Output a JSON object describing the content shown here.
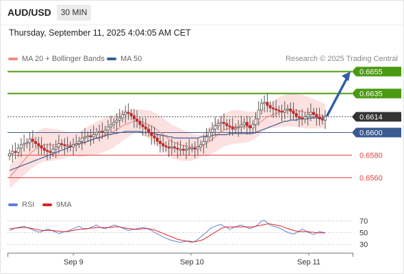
{
  "header": {
    "pair": "AUD/USD",
    "timeframe": "30 MIN",
    "datetime": "Thursday, September 11, 2025 4:04:05 AM CET"
  },
  "legend": {
    "ma20": "MA 20 + Bollinger Bands",
    "ma50": "MA 50",
    "copyright": "Research © 2025 Trading Central",
    "ma20_color": "#f28b82",
    "ma50_color": "#3a5a92"
  },
  "rsi_legend": {
    "rsi": "RSI",
    "ma9": "9MA",
    "rsi_color": "#5b7fd6",
    "ma9_color": "#e02020"
  },
  "levels": [
    {
      "label": "0.6655",
      "value": 0.6655,
      "kind": "resistance",
      "color": "#4a9a12"
    },
    {
      "label": "0.6635",
      "value": 0.6635,
      "kind": "resistance",
      "color": "#4a9a12"
    },
    {
      "label": "0.6614",
      "value": 0.6614,
      "kind": "last",
      "color": "#333333"
    },
    {
      "label": "0.6600",
      "value": 0.66,
      "kind": "pivot",
      "color": "#3a5a92"
    },
    {
      "label": "0.6580",
      "value": 0.658,
      "kind": "support",
      "color": "#e04040"
    },
    {
      "label": "0.6560",
      "value": 0.656,
      "kind": "support",
      "color": "#e04040"
    }
  ],
  "rsi_axis": [
    "70",
    "50",
    "30"
  ],
  "xaxis": [
    "Sep 9",
    "Sep 10",
    "Sep 11"
  ],
  "chart_data": {
    "type": "candlestick",
    "y_range": [
      0.6553,
      0.6659
    ],
    "candle_closes": [
      0.6581,
      0.6583,
      0.6582,
      0.6586,
      0.6589,
      0.659,
      0.6591,
      0.6594,
      0.6592,
      0.659,
      0.6588,
      0.6586,
      0.6584,
      0.6583,
      0.6582,
      0.6585,
      0.6587,
      0.659,
      0.6589,
      0.6588,
      0.6588,
      0.6587,
      0.6589,
      0.659,
      0.6592,
      0.6595,
      0.6596,
      0.6597,
      0.6596,
      0.6598,
      0.66,
      0.6601,
      0.66,
      0.6602,
      0.6605,
      0.6607,
      0.6609,
      0.6611,
      0.6613,
      0.6616,
      0.6618,
      0.6617,
      0.6615,
      0.6612,
      0.661,
      0.6607,
      0.6605,
      0.6603,
      0.66,
      0.6597,
      0.6595,
      0.6592,
      0.659,
      0.6588,
      0.6587,
      0.6586,
      0.6587,
      0.6586,
      0.6585,
      0.6585,
      0.6584,
      0.6585,
      0.6586,
      0.6586,
      0.6585,
      0.6587,
      0.6589,
      0.6592,
      0.6596,
      0.66,
      0.6603,
      0.6606,
      0.6608,
      0.6609,
      0.6608,
      0.6606,
      0.6605,
      0.6603,
      0.6604,
      0.6605,
      0.6607,
      0.6609,
      0.6606,
      0.6604,
      0.6607,
      0.6612,
      0.662,
      0.6626,
      0.6627,
      0.6624,
      0.6622,
      0.6621,
      0.662,
      0.6619,
      0.6618,
      0.662,
      0.6621,
      0.6619,
      0.6617,
      0.6614,
      0.6613,
      0.6612,
      0.6614,
      0.6616,
      0.6618,
      0.6616,
      0.6614,
      0.6612,
      0.6611,
      0.6614
    ],
    "ma20": [
      0.656,
      0.6563,
      0.6566,
      0.6569,
      0.6572,
      0.6575,
      0.6578,
      0.6581,
      0.6583,
      0.6585,
      0.6587,
      0.6588,
      0.6589,
      0.6589,
      0.6589,
      0.6589,
      0.6589,
      0.6589,
      0.6589,
      0.6589,
      0.6589,
      0.6589,
      0.6589,
      0.6589,
      0.6589,
      0.659,
      0.6591,
      0.6592,
      0.6593,
      0.6594,
      0.6595,
      0.6596,
      0.6597,
      0.6598,
      0.6599,
      0.66,
      0.6601,
      0.6603,
      0.6604,
      0.6606,
      0.6607,
      0.6608,
      0.6609,
      0.661,
      0.661,
      0.661,
      0.6609,
      0.6608,
      0.6607,
      0.6606,
      0.6604,
      0.6602,
      0.66,
      0.6598,
      0.6596,
      0.6594,
      0.6592,
      0.6591,
      0.659,
      0.6589,
      0.6588,
      0.6588,
      0.6587,
      0.6587,
      0.6587,
      0.6587,
      0.6588,
      0.6589,
      0.659,
      0.6592,
      0.6594,
      0.6596,
      0.6598,
      0.66,
      0.6602,
      0.6603,
      0.6604,
      0.6605,
      0.6605,
      0.6605,
      0.6605,
      0.6605,
      0.6605,
      0.6605,
      0.6606,
      0.6607,
      0.6608,
      0.661,
      0.6612,
      0.6614,
      0.6615,
      0.6616,
      0.6617,
      0.6618,
      0.6619,
      0.6619,
      0.662,
      0.662,
      0.662,
      0.662,
      0.6619,
      0.6619,
      0.6618,
      0.6618,
      0.6617,
      0.6617,
      0.6616,
      0.6616,
      0.6615,
      0.6615
    ],
    "ma50": [
      0.6566,
      0.6567,
      0.6568,
      0.6569,
      0.657,
      0.6571,
      0.6572,
      0.6573,
      0.6574,
      0.6575,
      0.6576,
      0.6577,
      0.6578,
      0.6579,
      0.658,
      0.6581,
      0.6582,
      0.6583,
      0.6584,
      0.6585,
      0.6586,
      0.6587,
      0.6588,
      0.6589,
      0.659,
      0.6591,
      0.6591,
      0.6592,
      0.6593,
      0.6594,
      0.6595,
      0.6595,
      0.6596,
      0.6597,
      0.6598,
      0.6598,
      0.6599,
      0.6599,
      0.66,
      0.66,
      0.6601,
      0.6601,
      0.6601,
      0.6601,
      0.6601,
      0.6601,
      0.66,
      0.66,
      0.66,
      0.6599,
      0.6599,
      0.6598,
      0.6598,
      0.6597,
      0.6597,
      0.6596,
      0.6596,
      0.6595,
      0.6595,
      0.6595,
      0.6595,
      0.6595,
      0.6595,
      0.6595,
      0.6595,
      0.6595,
      0.6596,
      0.6596,
      0.6597,
      0.6597,
      0.6597,
      0.6598,
      0.6598,
      0.6598,
      0.6598,
      0.6598,
      0.6599,
      0.6599,
      0.6599,
      0.6599,
      0.6599,
      0.6599,
      0.6599,
      0.6599,
      0.6599,
      0.66,
      0.6601,
      0.6602,
      0.6603,
      0.6604,
      0.6605,
      0.6606,
      0.6607,
      0.6608,
      0.6609,
      0.661,
      0.661,
      0.6611,
      0.6611,
      0.6611,
      0.6612,
      0.6612,
      0.6612,
      0.6612,
      0.6613,
      0.6613,
      0.6613,
      0.6613,
      0.6613,
      0.6613
    ],
    "rsi": [
      53,
      55,
      57,
      58,
      59,
      60,
      58,
      56,
      54,
      52,
      50,
      51,
      53,
      55,
      54,
      52,
      50,
      48,
      49,
      51,
      52,
      54,
      56,
      58,
      60,
      57,
      55,
      56,
      58,
      60,
      62,
      59,
      57,
      56,
      58,
      60,
      62,
      61,
      59,
      57,
      55,
      53,
      54,
      55,
      56,
      57,
      58,
      57,
      55,
      53,
      50,
      47,
      45,
      42,
      40,
      38,
      36,
      35,
      34,
      33,
      34,
      35,
      34,
      33,
      35,
      38,
      42,
      46,
      50,
      55,
      58,
      60,
      62,
      63,
      60,
      58,
      55,
      57,
      59,
      61,
      62,
      60,
      58,
      56,
      58,
      60,
      64,
      69,
      70,
      66,
      62,
      60,
      59,
      57,
      55,
      52,
      50,
      48,
      47,
      49,
      52,
      55,
      53,
      50,
      48,
      46,
      49,
      51,
      50,
      49
    ],
    "rsi_ma9": [
      56,
      56,
      57,
      57,
      58,
      58,
      58,
      57,
      56,
      55,
      54,
      53,
      53,
      53,
      53,
      53,
      52,
      52,
      51,
      51,
      51,
      52,
      53,
      54,
      55,
      55,
      56,
      56,
      57,
      57,
      58,
      58,
      58,
      58,
      58,
      58,
      59,
      59,
      59,
      58,
      57,
      56,
      56,
      55,
      55,
      55,
      56,
      56,
      56,
      55,
      54,
      52,
      50,
      48,
      46,
      44,
      42,
      40,
      38,
      37,
      36,
      35,
      35,
      34,
      34,
      35,
      36,
      38,
      41,
      44,
      47,
      50,
      53,
      56,
      58,
      59,
      59,
      59,
      59,
      59,
      59,
      59,
      59,
      59,
      59,
      60,
      61,
      62,
      63,
      64,
      64,
      63,
      62,
      61,
      60,
      58,
      56,
      55,
      53,
      52,
      51,
      51,
      51,
      51,
      50,
      50,
      49,
      49,
      49,
      49
    ]
  }
}
